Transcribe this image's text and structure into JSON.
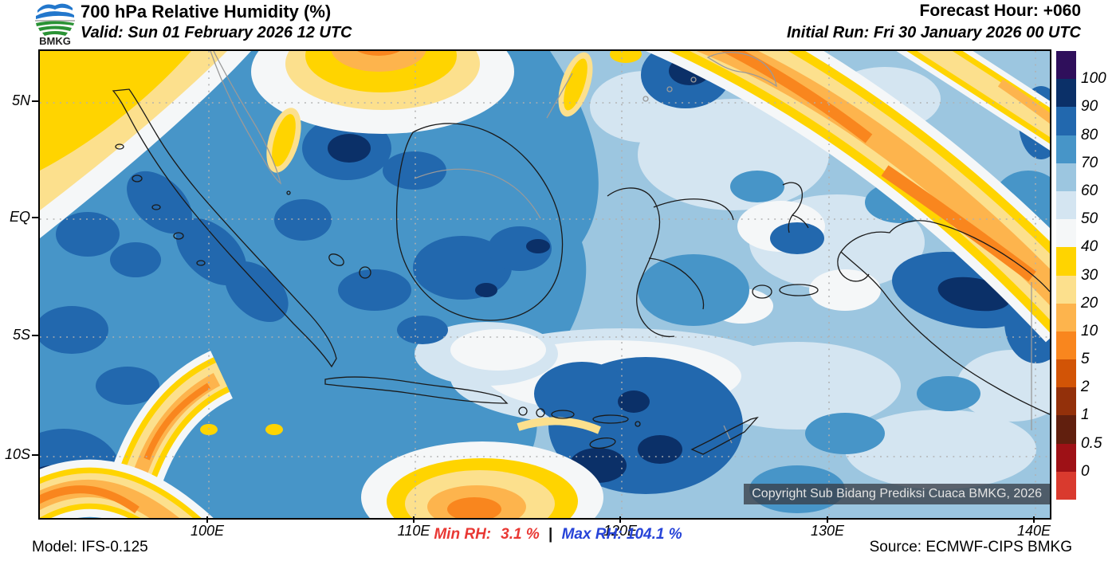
{
  "header": {
    "title": "700 hPa Relative Humidity (%)",
    "valid": "Valid: Sun 01 February 2026 12 UTC",
    "forecast_hour": "Forecast Hour: +060",
    "initial_run": "Initial Run: Fri 30 January 2026 00 UTC",
    "logo_text": "BMKG"
  },
  "map": {
    "copyright": "Copyright Sub Bidang Prediksi Cuaca BMKG, 2026",
    "lat_labels": [
      "5N",
      "EQ",
      "5S",
      "10S"
    ],
    "lon_labels": [
      "100E",
      "110E",
      "120E",
      "130E",
      "140E"
    ]
  },
  "colorbar": {
    "labels": [
      "100",
      "90",
      "80",
      "70",
      "60",
      "50",
      "40",
      "30",
      "20",
      "10",
      "5",
      "2",
      "1",
      "0.5",
      "0"
    ],
    "colors_top_to_bottom": [
      "#2f0f5b",
      "#0b3068",
      "#2268ae",
      "#4795c8",
      "#9cc6e0",
      "#d4e5f1",
      "#f5f7f8",
      "#ffd400",
      "#fce08d",
      "#fdb44d",
      "#f9861e",
      "#d25406",
      "#93300a",
      "#611f0e",
      "#9e1116",
      "#d93a2e"
    ]
  },
  "footer": {
    "model": "Model: IFS-0.125",
    "min_rh_label": "Min RH:",
    "min_rh_value": "3.1 %",
    "separator": "|",
    "max_rh_label": "Max RH:",
    "max_rh_value": "104.1 %",
    "source": "Source: ECMWF-CIPS BMKG",
    "min_color": "#e93834",
    "max_color": "#2744d8"
  },
  "chart_data": {
    "type": "filled-contour-map",
    "variable": "700 hPa Relative Humidity",
    "units": "%",
    "contour_levels": [
      0,
      0.5,
      1,
      2,
      5,
      10,
      20,
      30,
      40,
      50,
      60,
      70,
      80,
      90,
      100
    ],
    "palette_top_to_bottom": [
      "#2f0f5b",
      "#0b3068",
      "#2268ae",
      "#4795c8",
      "#9cc6e0",
      "#d4e5f1",
      "#f5f7f8",
      "#ffd400",
      "#fce08d",
      "#fdb44d",
      "#f9861e",
      "#d25406",
      "#93300a",
      "#611f0e",
      "#9e1116",
      "#d93a2e"
    ],
    "min_rh": 3.1,
    "max_rh": 104.1,
    "lat_ticks": [
      "5N",
      "EQ",
      "5S",
      "10S"
    ],
    "lon_ticks": [
      "100E",
      "110E",
      "120E",
      "130E",
      "140E"
    ],
    "region": "Indonesia",
    "model": "IFS-0.125",
    "source": "ECMWF-CIPS BMKG",
    "grid": "dotted"
  }
}
